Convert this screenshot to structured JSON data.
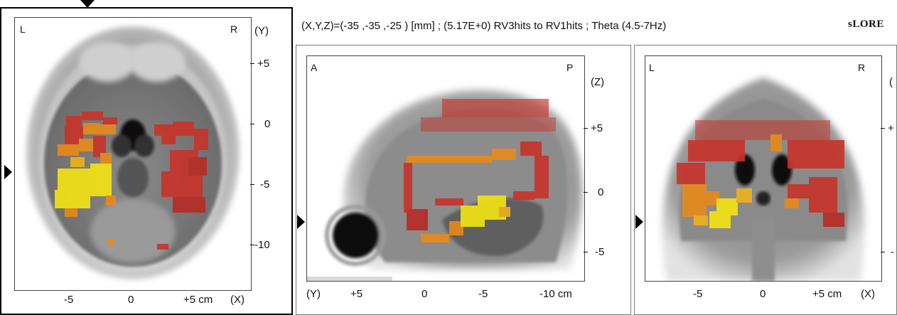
{
  "header": {
    "coords": "(X,Y,Z)=(-35 ,-35 ,-25 ) [mm]  ;  (5.17E+0)   RV3hits to RV1hits ;  Theta (4.5-7Hz)",
    "brand": "sLORE"
  },
  "axial": {
    "corner_left": "L",
    "corner_right": "R",
    "axis_label_right": "(Y)",
    "right_ticks": [
      "+5",
      "0",
      "-5",
      "-10"
    ],
    "bottom_ticks": [
      "-5",
      "0",
      "+5 cm"
    ],
    "axis_label_bottom": "(X)"
  },
  "sagittal": {
    "corner_left": "A",
    "corner_right": "P",
    "axis_label_right": "(Z)",
    "right_ticks": [
      "+5",
      "0",
      "-5"
    ],
    "axis_label_bottom": "(Y)",
    "bottom_ticks": [
      "+5",
      "0",
      "-5",
      "-10 cm"
    ]
  },
  "coronal": {
    "corner_left": "L",
    "corner_right": "R",
    "axis_label_right_partial": "(",
    "right_ticks_partial": [
      "+",
      "-"
    ],
    "bottom_ticks": [
      "-5",
      "0",
      "+5 cm"
    ],
    "axis_label_bottom": "(X)"
  },
  "colors": {
    "activation_yellow": "#f4e412",
    "activation_orange": "#e88a1a",
    "activation_red": "#c8332a",
    "frame": "#7a7a7a",
    "marker": "#000000"
  }
}
